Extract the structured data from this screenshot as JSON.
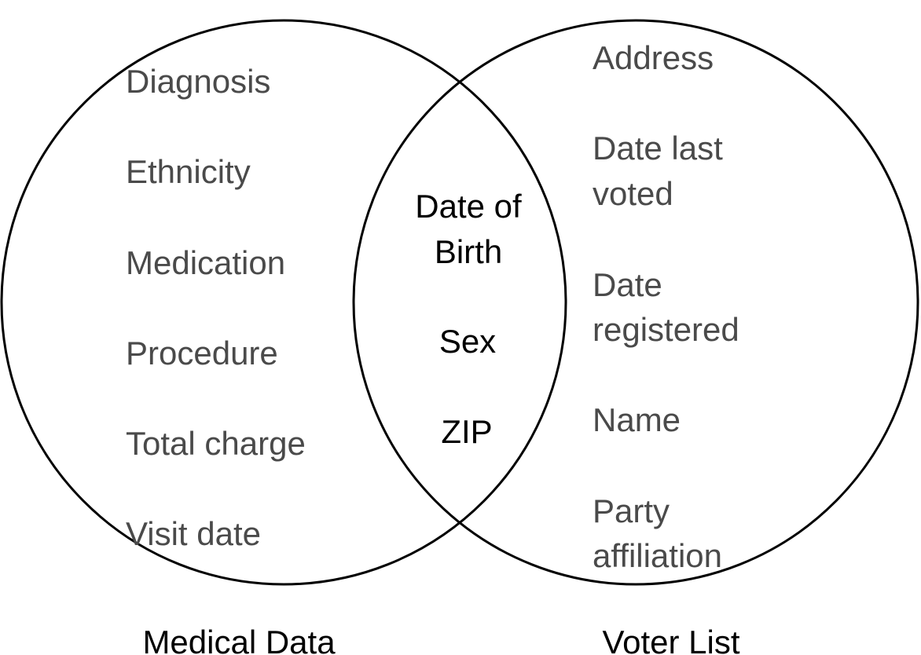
{
  "diagram": {
    "type": "venn",
    "left_set": {
      "label": "Medical Data",
      "items": [
        "Diagnosis",
        "Ethnicity",
        "Medication",
        "Procedure",
        "Total charge",
        "Visit date"
      ]
    },
    "right_set": {
      "label": "Voter List",
      "items": [
        [
          "Address"
        ],
        [
          "Date last",
          "voted"
        ],
        [
          "Date",
          "registered"
        ],
        [
          "Name"
        ],
        [
          "Party",
          "affiliation"
        ]
      ]
    },
    "intersection": {
      "items": [
        [
          "Date of",
          "Birth"
        ],
        [
          "Sex"
        ],
        [
          "ZIP"
        ]
      ]
    },
    "colors": {
      "outline": "#000000",
      "side_text": "#4a4a4a",
      "intersection_text": "#000000"
    }
  }
}
